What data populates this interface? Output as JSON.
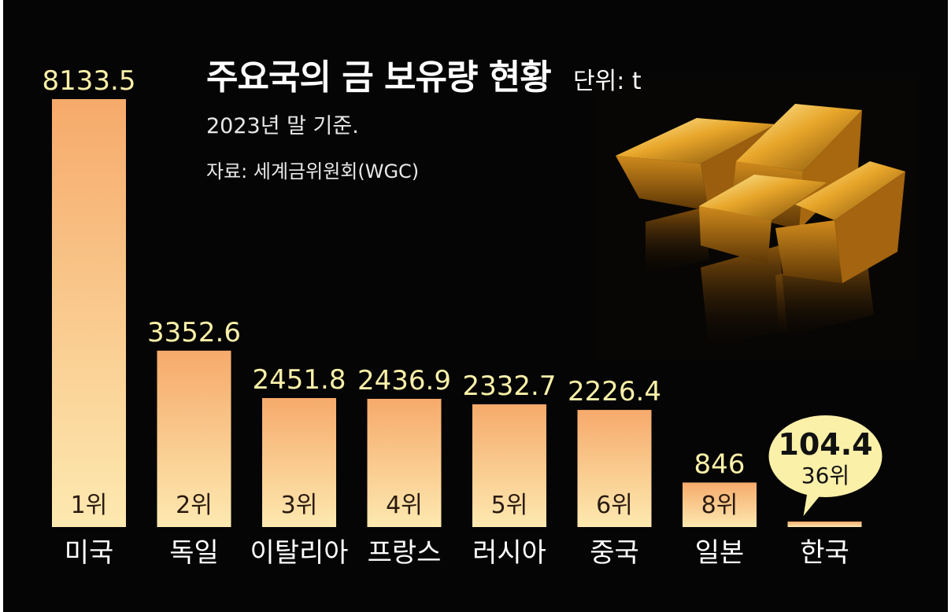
{
  "header": {
    "title": "주요국의 금 보유량 현황",
    "unit": "단위: t",
    "subtitle": "2023년 말 기준.",
    "source": "자료: 세계금위원회(WGC)"
  },
  "colors": {
    "background": "#050505",
    "bar_top": "#f6aa6b",
    "bar_bottom": "#fde9b0",
    "value_label": "#fbf0a8",
    "rank_label": "#2a1a10",
    "category_label": "#ffffff",
    "callout_fill": "#fbf0a8"
  },
  "illustration": {
    "icon": "gold-bars-photo"
  },
  "chart_data": {
    "type": "bar",
    "categories": [
      "미국",
      "독일",
      "이탈리아",
      "프랑스",
      "러시아",
      "중국",
      "일본",
      "한국"
    ],
    "values": [
      8133.5,
      3352.6,
      2451.8,
      2436.9,
      2332.7,
      2226.4,
      846,
      104.4
    ],
    "value_labels": [
      "8133.5",
      "3352.6",
      "2451.8",
      "2436.9",
      "2332.7",
      "2226.4",
      "846",
      "104.4"
    ],
    "ranks": [
      "1위",
      "2위",
      "3위",
      "4위",
      "5위",
      "6위",
      "8위",
      "36위"
    ],
    "highlight_index": 7,
    "ylim": [
      0,
      8133.5
    ],
    "grid": false,
    "legend": "none"
  }
}
